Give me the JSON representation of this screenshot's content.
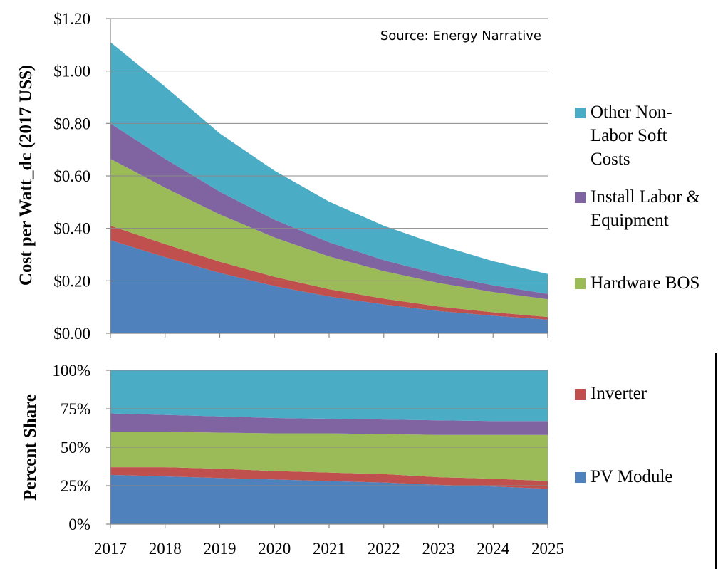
{
  "chart_data": [
    {
      "type": "area",
      "stacked": true,
      "x": [
        2017,
        2018,
        2019,
        2020,
        2021,
        2022,
        2023,
        2024,
        2025
      ],
      "ylabel": "Cost per Watt_dc (2017 US$)",
      "ylim": [
        0,
        1.2
      ],
      "yticks": [
        "$0.00",
        "$0.20",
        "$0.40",
        "$0.60",
        "$0.80",
        "$1.00",
        "$1.20"
      ],
      "annotation": "Source: Energy Narrative",
      "grid": true,
      "legend_position": "right",
      "series": [
        {
          "name": "PV Module",
          "color": "#4f81bd",
          "values": [
            0.355,
            0.29,
            0.23,
            0.18,
            0.14,
            0.11,
            0.085,
            0.067,
            0.052
          ]
        },
        {
          "name": "Inverter",
          "color": "#c0504d",
          "values": [
            0.055,
            0.05,
            0.043,
            0.035,
            0.028,
            0.022,
            0.017,
            0.013,
            0.01
          ]
        },
        {
          "name": "Hardware BOS",
          "color": "#9bbb59",
          "values": [
            0.255,
            0.215,
            0.18,
            0.15,
            0.125,
            0.105,
            0.09,
            0.077,
            0.068
          ]
        },
        {
          "name": "Install Labor & Equipment",
          "color": "#8064a2",
          "values": [
            0.135,
            0.11,
            0.087,
            0.068,
            0.054,
            0.042,
            0.033,
            0.026,
            0.02
          ]
        },
        {
          "name": "Other Non-Labor Soft Costs",
          "color": "#4bacc6",
          "values": [
            0.31,
            0.275,
            0.222,
            0.187,
            0.155,
            0.131,
            0.112,
            0.092,
            0.076
          ]
        }
      ]
    },
    {
      "type": "area",
      "stacked": true,
      "x": [
        2017,
        2018,
        2019,
        2020,
        2021,
        2022,
        2023,
        2024,
        2025
      ],
      "xticks": [
        "2017",
        "2018",
        "2019",
        "2020",
        "2021",
        "2022",
        "2023",
        "2024",
        "2025"
      ],
      "ylabel": "Percent Share",
      "ylim": [
        0,
        100
      ],
      "yticks": [
        "0%",
        "25%",
        "50%",
        "75%",
        "100%"
      ],
      "grid": true,
      "series": [
        {
          "name": "PV Module",
          "color": "#4f81bd",
          "values": [
            32,
            31,
            30,
            29,
            28,
            27,
            25.5,
            24.5,
            23
          ]
        },
        {
          "name": "Inverter",
          "color": "#c0504d",
          "values": [
            5,
            6,
            6,
            5.5,
            5.5,
            5.5,
            5,
            5,
            5
          ]
        },
        {
          "name": "Hardware BOS",
          "color": "#9bbb59",
          "values": [
            23,
            23,
            23.5,
            24.5,
            25.5,
            26,
            27.5,
            28.5,
            30
          ]
        },
        {
          "name": "Install Labor & Equipment",
          "color": "#8064a2",
          "values": [
            12,
            11,
            10.5,
            10,
            9.5,
            9.5,
            9.5,
            9,
            9
          ]
        },
        {
          "name": "Other Non-Labor Soft Costs",
          "color": "#4bacc6",
          "values": [
            28,
            29,
            30,
            31,
            31.5,
            32,
            32.5,
            33,
            33
          ]
        }
      ]
    }
  ],
  "legend": [
    {
      "lines": [
        "Other Non-",
        "Labor Soft",
        "Costs"
      ],
      "color": "#4bacc6"
    },
    {
      "lines": [
        "Install Labor &",
        "Equipment"
      ],
      "color": "#8064a2"
    },
    {
      "lines": [
        "Hardware BOS"
      ],
      "color": "#9bbb59"
    },
    {
      "lines": [
        "Inverter"
      ],
      "color": "#c0504d"
    },
    {
      "lines": [
        "PV Module"
      ],
      "color": "#4f81bd"
    }
  ]
}
